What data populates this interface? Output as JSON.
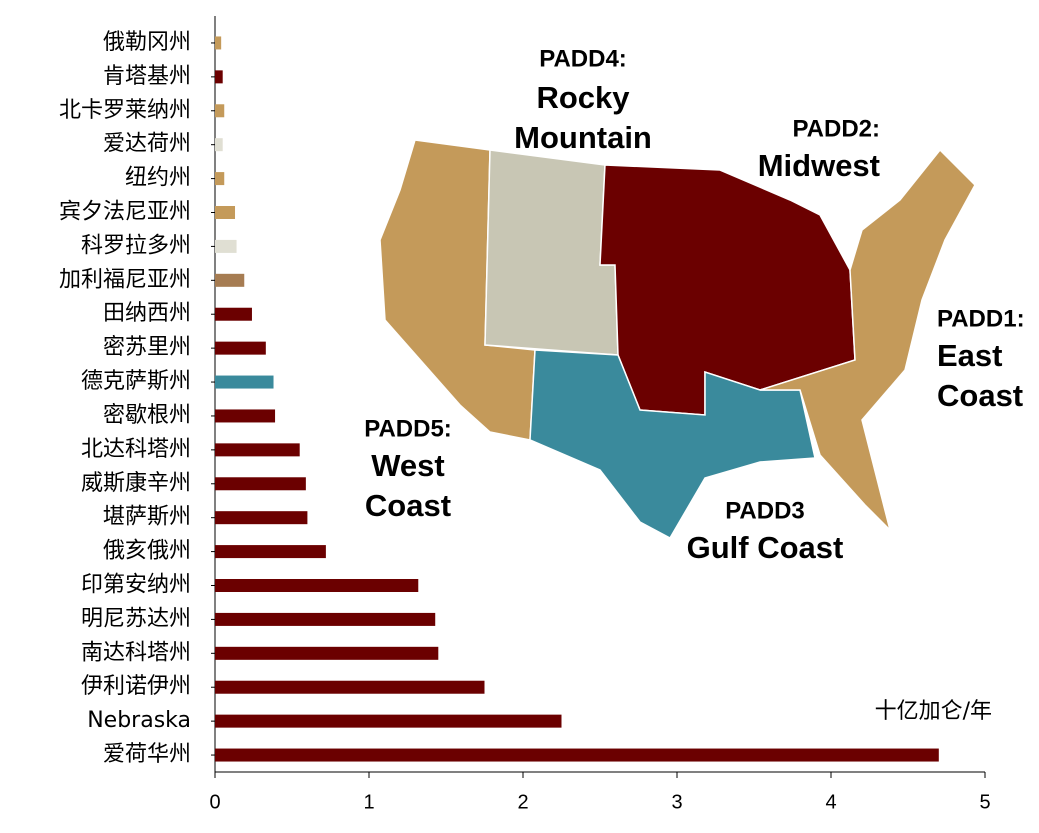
{
  "chart_data": {
    "type": "bar",
    "orientation": "horizontal",
    "categories": [
      "俄勒冈州",
      "肯塔基州",
      "北卡罗莱纳州",
      "爱达荷州",
      "纽约州",
      "宾夕法尼亚州",
      "科罗拉多州",
      "加利福尼亚州",
      "田纳西州",
      "密苏里州",
      "德克萨斯州",
      "密歇根州",
      "北达科塔州",
      "威斯康辛州",
      "堪萨斯州",
      "俄亥俄州",
      "印第安纳州",
      "明尼苏达州",
      "南达科塔州",
      "伊利诺伊州",
      "Nebraska",
      "爱荷华州"
    ],
    "values": [
      0.04,
      0.05,
      0.06,
      0.05,
      0.06,
      0.13,
      0.14,
      0.19,
      0.24,
      0.33,
      0.38,
      0.39,
      0.55,
      0.59,
      0.6,
      0.72,
      1.32,
      1.43,
      1.45,
      1.75,
      2.25,
      4.7
    ],
    "colors": [
      "#c49a5a",
      "#6b0000",
      "#c49a5a",
      "#e0dfd3",
      "#c49a5a",
      "#c49a5a",
      "#e0dfd3",
      "#a67c52",
      "#6b0000",
      "#6b0000",
      "#3a8a9c",
      "#6b0000",
      "#6b0000",
      "#6b0000",
      "#6b0000",
      "#6b0000",
      "#6b0000",
      "#6b0000",
      "#6b0000",
      "#6b0000",
      "#6b0000",
      "#6b0000"
    ],
    "xlim": [
      0,
      5
    ],
    "xticks": [
      0,
      1,
      2,
      3,
      4,
      5
    ],
    "unit_label": "十亿加仑/年",
    "annotations": [
      {
        "lines": [
          "PADD4:",
          "Rocky",
          "Mountain"
        ],
        "color": "#c8c6b4"
      },
      {
        "lines": [
          "PADD2:",
          "Midwest"
        ],
        "color": "#6b0000"
      },
      {
        "lines": [
          "PADD1:",
          "East",
          "Coast"
        ],
        "color": "#c49a5a"
      },
      {
        "lines": [
          "PADD5:",
          "West",
          "Coast"
        ],
        "color": "#c49a5a"
      },
      {
        "lines": [
          "PADD3",
          "Gulf Coast"
        ],
        "color": "#3a8a9c"
      }
    ]
  }
}
